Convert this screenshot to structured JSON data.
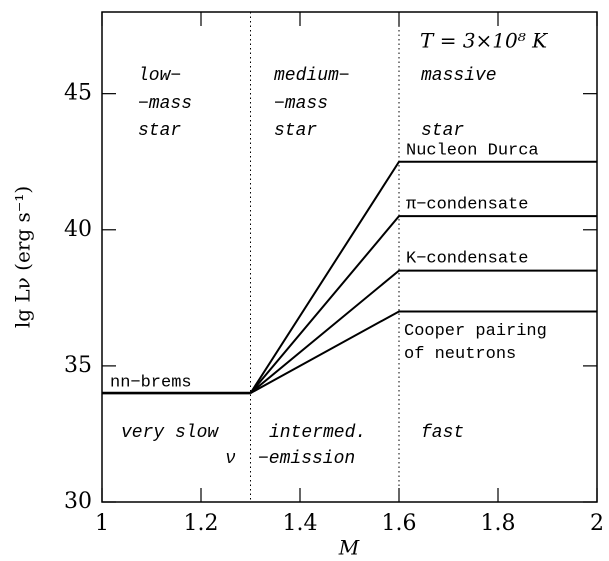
{
  "chart_data": {
    "type": "line",
    "title": "T = 3×10⁸ K",
    "x_label": "M",
    "y_label": "lg Lν (erg s⁻¹)",
    "x": [
      1,
      1.3,
      1.6,
      2
    ],
    "series": [
      {
        "name": "nn−brems",
        "color": "#000000",
        "values": [
          34,
          34,
          null,
          null
        ]
      },
      {
        "name": "Nucleon Durca",
        "color": "#000000",
        "values": [
          null,
          34,
          42.5,
          42.5
        ]
      },
      {
        "name": "π−condensate",
        "color": "#000000",
        "values": [
          null,
          34,
          40.5,
          40.5
        ]
      },
      {
        "name": "K−condensate",
        "color": "#000000",
        "values": [
          null,
          34,
          38.5,
          38.5
        ]
      },
      {
        "name": "Cooper pairing of neutrons",
        "color": "#000000",
        "values": [
          null,
          34,
          37,
          37
        ]
      }
    ],
    "vlines": [
      1.3,
      1.6
    ],
    "annotations": [
      "low−",
      "−mass",
      "star",
      "medium−",
      "−mass",
      "star",
      "massive",
      "star",
      "very slow",
      "intermed.",
      "fast",
      "ν",
      "−emission"
    ],
    "xlim": [
      1,
      2
    ],
    "xticks": [
      1,
      1.2,
      1.4,
      1.6,
      1.8,
      2
    ],
    "ylim": [
      30,
      48
    ],
    "yticks": [
      30,
      35,
      40,
      45
    ],
    "grid": false
  }
}
